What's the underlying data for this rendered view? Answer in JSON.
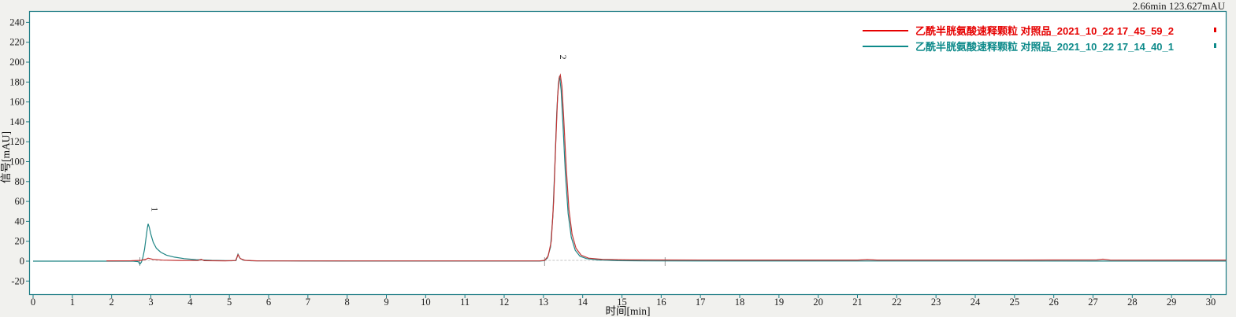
{
  "annotation": {
    "cursor_readout": "2.66min 123.627mAU"
  },
  "colors": {
    "window_background": "#f1f1ee",
    "plot_background": "#ffffff",
    "plot_border": "#1b7b84",
    "tick_text": "#1a1a1a",
    "baseline_dash": "#c4c4c4",
    "integration_mark": "#9a9a9a"
  },
  "chart_data": {
    "type": "line",
    "title": "",
    "xlabel": "时间[min]",
    "ylabel": "信号[mAU]",
    "xlim": [
      0,
      30.5
    ],
    "ylim": [
      -33,
      251
    ],
    "x_ticks": [
      0,
      1,
      2,
      3,
      4,
      5,
      6,
      7,
      8,
      9,
      10,
      11,
      12,
      13,
      14,
      15,
      16,
      17,
      18,
      19,
      20,
      21,
      22,
      23,
      24,
      25,
      26,
      27,
      28,
      29,
      30
    ],
    "y_ticks": [
      -20,
      0,
      20,
      40,
      60,
      80,
      100,
      120,
      140,
      160,
      180,
      200,
      220,
      240
    ],
    "grid": false,
    "legend_position": "top-right",
    "peak_labels": [
      {
        "label": "1",
        "x": 3.02,
        "y": 52
      },
      {
        "label": "2",
        "x": 13.42,
        "y": 205
      }
    ],
    "baselines": [
      {
        "x1": 2.72,
        "x2": 4.6,
        "y": 0.8
      },
      {
        "x1": 13.03,
        "x2": 15.6,
        "y": 0.8
      }
    ],
    "integration_marks": [
      2.72,
      13.03,
      16.1
    ],
    "series": [
      {
        "name": "乙酰半胱氨酸速释颗粒 对照品_2021_10_22 17_45_59_2",
        "legend_color": "#e60000",
        "color": "#c23434",
        "points": [
          [
            1.87,
            0.3
          ],
          [
            2.5,
            0.4
          ],
          [
            2.75,
            0.8
          ],
          [
            2.88,
            2
          ],
          [
            2.93,
            3
          ],
          [
            3.05,
            1.8
          ],
          [
            3.3,
            1
          ],
          [
            3.7,
            0.7
          ],
          [
            4.2,
            0.6
          ],
          [
            4.28,
            1.8
          ],
          [
            4.36,
            0.5
          ],
          [
            4.9,
            0.3
          ],
          [
            5.16,
            0.6
          ],
          [
            5.22,
            6.5
          ],
          [
            5.28,
            2.5
          ],
          [
            5.4,
            0.8
          ],
          [
            5.7,
            0.3
          ],
          [
            7.0,
            0.2
          ],
          [
            12.9,
            0.2
          ],
          [
            13.03,
            0.8
          ],
          [
            13.12,
            5
          ],
          [
            13.2,
            20
          ],
          [
            13.26,
            60
          ],
          [
            13.31,
            115
          ],
          [
            13.36,
            165
          ],
          [
            13.4,
            184
          ],
          [
            13.43,
            187
          ],
          [
            13.47,
            176
          ],
          [
            13.52,
            142
          ],
          [
            13.58,
            95
          ],
          [
            13.65,
            52
          ],
          [
            13.73,
            27
          ],
          [
            13.83,
            13
          ],
          [
            13.96,
            6
          ],
          [
            14.15,
            3
          ],
          [
            14.5,
            1.8
          ],
          [
            15.2,
            1.3
          ],
          [
            16.05,
            1.2
          ],
          [
            18.0,
            1.1
          ],
          [
            21.0,
            1.1
          ],
          [
            21.25,
            1.6
          ],
          [
            21.5,
            1.1
          ],
          [
            25.0,
            1.1
          ],
          [
            27.1,
            1.3
          ],
          [
            27.25,
            2.0
          ],
          [
            27.45,
            1.0
          ],
          [
            30.4,
            1.1
          ]
        ]
      },
      {
        "name": "乙酰半胱氨酸速释颗粒 对照品_2021_10_22 17_14_40_1",
        "legend_color": "#0d8a8a",
        "color": "#1e8585",
        "points": [
          [
            0,
            0
          ],
          [
            1.85,
            0
          ],
          [
            2.55,
            0
          ],
          [
            2.68,
            -0.5
          ],
          [
            2.72,
            -3
          ],
          [
            2.76,
            -1
          ],
          [
            2.8,
            4
          ],
          [
            2.84,
            12
          ],
          [
            2.88,
            24
          ],
          [
            2.91,
            33
          ],
          [
            2.93,
            37.5
          ],
          [
            2.96,
            34
          ],
          [
            3.0,
            27
          ],
          [
            3.06,
            19
          ],
          [
            3.14,
            13
          ],
          [
            3.25,
            9
          ],
          [
            3.4,
            6
          ],
          [
            3.6,
            4
          ],
          [
            3.85,
            2.5
          ],
          [
            4.15,
            1.5
          ],
          [
            4.55,
            0.8
          ],
          [
            5.05,
            0.4
          ],
          [
            5.17,
            0.6
          ],
          [
            5.22,
            7
          ],
          [
            5.27,
            3
          ],
          [
            5.35,
            1
          ],
          [
            5.55,
            0.4
          ],
          [
            6.5,
            0.2
          ],
          [
            8.0,
            0.1
          ],
          [
            12.9,
            0.1
          ],
          [
            13.02,
            0.5
          ],
          [
            13.1,
            3
          ],
          [
            13.18,
            14
          ],
          [
            13.24,
            45
          ],
          [
            13.29,
            95
          ],
          [
            13.34,
            150
          ],
          [
            13.38,
            178
          ],
          [
            13.41,
            186
          ],
          [
            13.45,
            172
          ],
          [
            13.5,
            135
          ],
          [
            13.56,
            88
          ],
          [
            13.63,
            48
          ],
          [
            13.71,
            24
          ],
          [
            13.81,
            11
          ],
          [
            13.93,
            5
          ],
          [
            14.1,
            2.5
          ],
          [
            14.4,
            1.2
          ],
          [
            14.9,
            0.5
          ],
          [
            15.6,
            0.2
          ],
          [
            30.4,
            0.1
          ]
        ]
      }
    ]
  }
}
